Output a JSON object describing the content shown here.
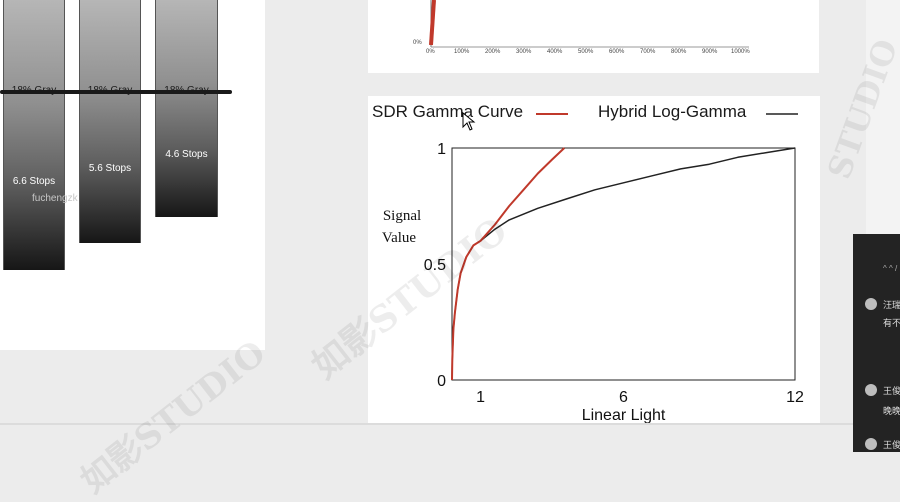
{
  "stops_figure": {
    "bars": [
      {
        "gray_label": "18% Gray",
        "stops_label": "6.6 Stops"
      },
      {
        "gray_label": "18% Gray",
        "stops_label": "5.6 Stops"
      },
      {
        "gray_label": "18% Gray",
        "stops_label": "4.6 Stops"
      }
    ],
    "watermark_text": "fuchengzk"
  },
  "top_chart": {
    "y_label": "0%",
    "x_ticks": [
      "0%",
      "100%",
      "200%",
      "300%",
      "400%",
      "500%",
      "600%",
      "700%",
      "800%",
      "900%",
      "1000%"
    ],
    "line_color": "#c0392b"
  },
  "chart_data": {
    "type": "line",
    "title": "",
    "xlabel": "Linear Light",
    "ylabel": "Signal Value",
    "xlim": [
      0,
      12
    ],
    "ylim": [
      0,
      1
    ],
    "x_ticks": [
      "1",
      "6",
      "12"
    ],
    "y_ticks": [
      "0",
      "0.5",
      "1"
    ],
    "legend_position": "top",
    "grid": false,
    "series": [
      {
        "name": "SDR Gamma Curve",
        "color": "#c0392b",
        "x": [
          0,
          0.01,
          0.05,
          0.1,
          0.2,
          0.3,
          0.5,
          0.75,
          1.0,
          1.5,
          2.0,
          2.5,
          3.0,
          3.5,
          3.93
        ],
        "y": [
          0,
          0.09,
          0.22,
          0.29,
          0.39,
          0.46,
          0.53,
          0.58,
          0.6,
          0.67,
          0.75,
          0.82,
          0.89,
          0.95,
          1.0
        ]
      },
      {
        "name": "Hybrid Log-Gamma",
        "color": "#222222",
        "x": [
          0,
          0.01,
          0.05,
          0.1,
          0.2,
          0.3,
          0.5,
          0.75,
          1.0,
          1.5,
          2,
          3,
          4,
          5,
          6,
          7,
          8,
          9,
          10,
          11,
          12
        ],
        "y": [
          0,
          0.09,
          0.22,
          0.29,
          0.39,
          0.46,
          0.53,
          0.58,
          0.6,
          0.65,
          0.69,
          0.74,
          0.78,
          0.82,
          0.85,
          0.88,
          0.91,
          0.93,
          0.96,
          0.98,
          1.0
        ]
      }
    ]
  },
  "chat": {
    "header": "^ ^ /",
    "items": [
      {
        "name": "汪瑞",
        "message": "有不"
      },
      {
        "name": "王俊",
        "message": "晚晚"
      },
      {
        "name": "王俊",
        "message": ""
      }
    ]
  },
  "watermarks": [
    "如影STUDIO",
    "如影STUDIO",
    "STUDIO"
  ]
}
